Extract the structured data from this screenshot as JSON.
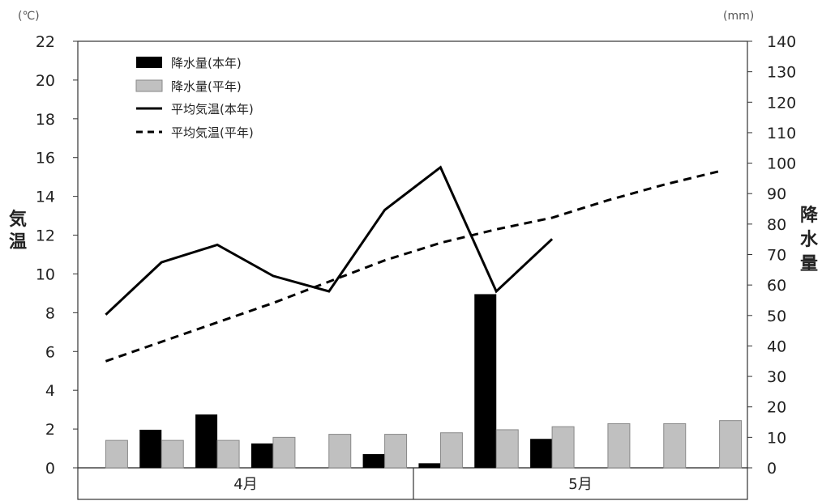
{
  "chart_data": {
    "type": "bar",
    "left_axis": {
      "label": "気温",
      "unit": "(℃)",
      "ylim": [
        0,
        22
      ],
      "ticks": [
        "0",
        "2",
        "4",
        "6",
        "8",
        "10",
        "12",
        "14",
        "16",
        "18",
        "20",
        "22"
      ]
    },
    "right_axis": {
      "label": "降水量",
      "unit": "(mm)",
      "ylim": [
        0,
        140
      ],
      "ticks": [
        "0",
        "10",
        "20",
        "30",
        "40",
        "50",
        "60",
        "70",
        "80",
        "90",
        "100",
        "110",
        "120",
        "130",
        "140"
      ]
    },
    "month_labels": [
      "4月",
      "5月"
    ],
    "legend": {
      "precip_this_year": "降水量(本年)",
      "precip_normal": "降水量(平年)",
      "temp_this_year": "平均気温(本年)",
      "temp_normal": "平均気温(平年)"
    },
    "series": [
      {
        "name": "降水量(本年)",
        "kind": "bar",
        "axis": "right",
        "color": "#000000",
        "values": [
          0,
          12.5,
          17.5,
          8,
          0,
          4.5,
          1.5,
          57,
          9.5,
          0,
          0,
          0
        ]
      },
      {
        "name": "降水量(平年)",
        "kind": "bar",
        "axis": "right",
        "color": "#c0c0c0",
        "values": [
          9,
          9,
          9,
          10,
          11,
          11,
          11.5,
          12.5,
          13.5,
          14.5,
          14.5,
          15.5
        ]
      },
      {
        "name": "平均気温(本年)",
        "kind": "line",
        "axis": "left",
        "color": "#000000",
        "style": "solid",
        "values": [
          7.9,
          10.6,
          11.5,
          9.9,
          9.1,
          13.3,
          15.5,
          9.1,
          11.8
        ]
      },
      {
        "name": "平均気温(平年)",
        "kind": "line",
        "axis": "left",
        "color": "#000000",
        "style": "dashed",
        "values": [
          5.5,
          6.5,
          7.5,
          8.5,
          9.6,
          10.7,
          11.6,
          12.3,
          12.9,
          13.8,
          14.6,
          15.3
        ]
      }
    ]
  }
}
